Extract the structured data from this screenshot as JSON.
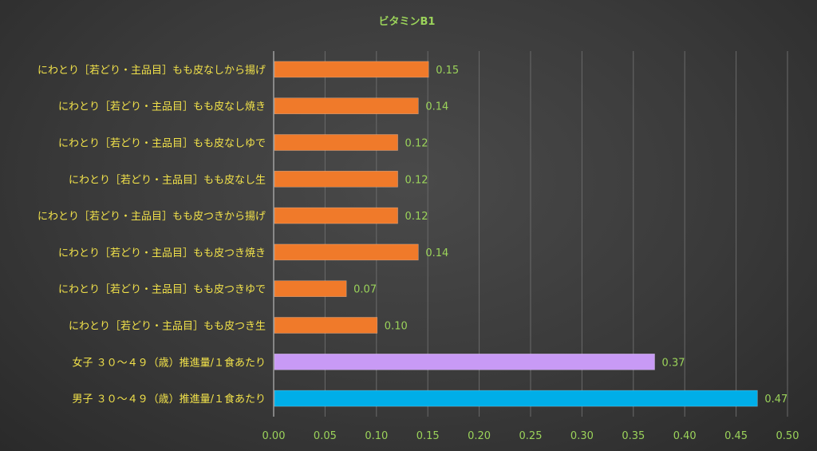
{
  "chart_data": {
    "type": "bar",
    "orientation": "horizontal",
    "title": "ビタミンB1",
    "categories": [
      "にわとり［若どり・主品目］もも皮なしから揚げ",
      "にわとり［若どり・主品目］もも皮なし焼き",
      "にわとり［若どり・主品目］もも皮なしゆで",
      "にわとり［若どり・主品目］もも皮なし生",
      "にわとり［若どり・主品目］もも皮つきから揚げ",
      "にわとり［若どり・主品目］もも皮つき焼き",
      "にわとり［若どり・主品目］もも皮つきゆで",
      "にわとり［若どり・主品目］もも皮つき生",
      "女子 ３０～４９（歳）推進量/１食あたり",
      "男子 ３０～４９（歳）推進量/１食あたり"
    ],
    "values": [
      0.15,
      0.14,
      0.12,
      0.12,
      0.12,
      0.14,
      0.07,
      0.1,
      0.37,
      0.47
    ],
    "value_labels": [
      "0.15",
      "0.14",
      "0.12",
      "0.12",
      "0.12",
      "0.14",
      "0.07",
      "0.10",
      "0.37",
      "0.47"
    ],
    "bar_colors": [
      "#f07a2a",
      "#f07a2a",
      "#f07a2a",
      "#f07a2a",
      "#f07a2a",
      "#f07a2a",
      "#f07a2a",
      "#f07a2a",
      "#c89af5",
      "#00aee8"
    ],
    "xlim": [
      0,
      0.5
    ],
    "x_ticks": [
      "0.00",
      "0.05",
      "0.10",
      "0.15",
      "0.20",
      "0.25",
      "0.30",
      "0.35",
      "0.40",
      "0.45",
      "0.50"
    ],
    "grid": true,
    "legend": "none",
    "colors": {
      "title": "#9bd35a",
      "category_labels": "#f2e24a",
      "value_labels": "#9bd35a",
      "tick_labels": "#9bd35a"
    }
  }
}
